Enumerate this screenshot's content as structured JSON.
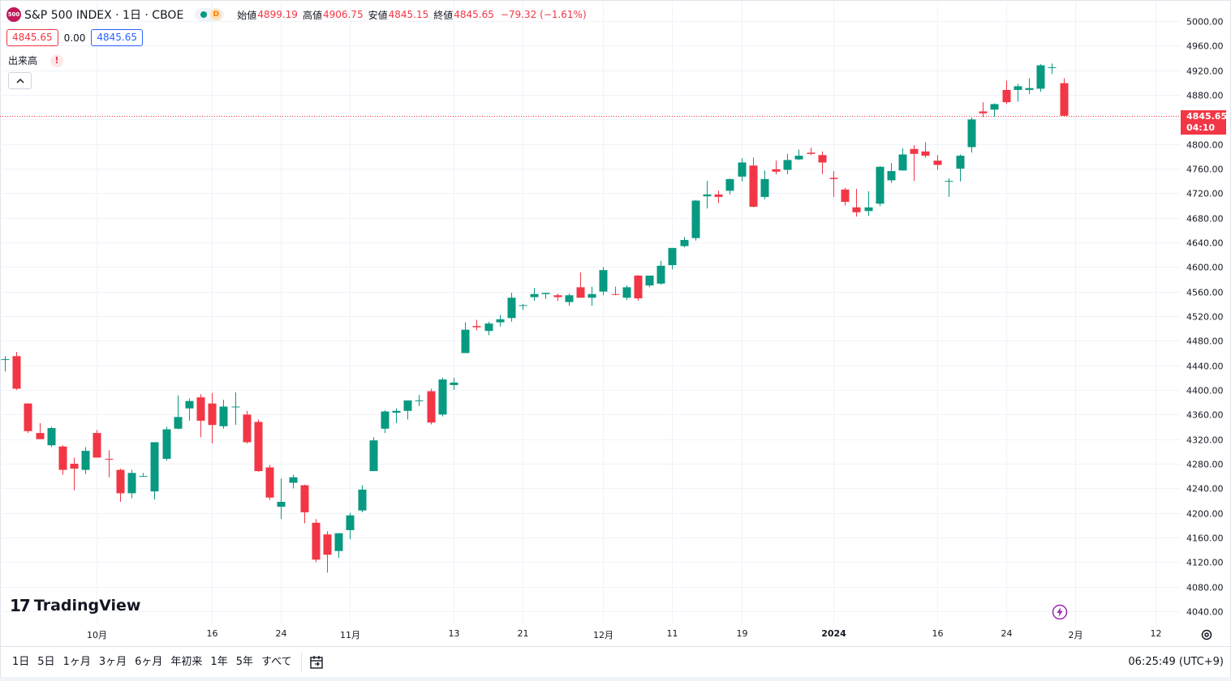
{
  "header": {
    "symbol_badge": "500",
    "title": "S&P 500 INDEX · 1日 · CBOE",
    "market_status_letter": "D",
    "ohlc": {
      "open_label": "始値",
      "open": "4899.19",
      "high_label": "高値",
      "high": "4906.75",
      "low_label": "安値",
      "low": "4845.15",
      "close_label": "終値",
      "close": "4845.65",
      "change": "−79.32 (−1.61%)"
    },
    "bid": "4845.65",
    "spread": "0.00",
    "ask": "4845.65"
  },
  "volume": {
    "label": "出来高",
    "warning_icon": "exclamation-icon"
  },
  "collapse_icon": "chevron-up-icon",
  "last_price_label": {
    "price": "4845.65",
    "countdown": "04:10"
  },
  "watermark": "TradingView",
  "colors": {
    "up": "#089981",
    "down": "#f23645",
    "grid": "#f0f3fa",
    "price_line": "#f23645"
  },
  "toolbar": {
    "ranges": [
      "1日",
      "5日",
      "1ヶ月",
      "3ヶ月",
      "6ヶ月",
      "年初来",
      "1年",
      "5年",
      "すべて"
    ],
    "goto_icon": "calendar-goto-icon",
    "clock": "06:25:49 (UTC+9)"
  },
  "chart_data": {
    "type": "candlestick",
    "yticks": [
      5000,
      4960,
      4920,
      4880,
      4840,
      4800,
      4760,
      4720,
      4680,
      4640,
      4600,
      4560,
      4520,
      4480,
      4440,
      4400,
      4360,
      4320,
      4280,
      4240,
      4200,
      4160,
      4120,
      4080,
      4040
    ],
    "ylim": [
      4020,
      5020
    ],
    "xticks": [
      {
        "label": "10月",
        "bold": false,
        "after_index": 8
      },
      {
        "label": "16",
        "bold": false,
        "after_index": 18
      },
      {
        "label": "24",
        "bold": false,
        "after_index": 24
      },
      {
        "label": "11月",
        "bold": false,
        "after_index": 30
      },
      {
        "label": "13",
        "bold": false,
        "after_index": 39
      },
      {
        "label": "21",
        "bold": false,
        "after_index": 45
      },
      {
        "label": "12月",
        "bold": false,
        "after_index": 52
      },
      {
        "label": "11",
        "bold": false,
        "after_index": 58
      },
      {
        "label": "19",
        "bold": false,
        "after_index": 64
      },
      {
        "label": "2024",
        "bold": true,
        "after_index": 72
      },
      {
        "label": "16",
        "bold": false,
        "after_index": 81
      },
      {
        "label": "24",
        "bold": false,
        "after_index": 87
      },
      {
        "label": "2月",
        "bold": false,
        "after_index": 93
      },
      {
        "label": "12",
        "bold": false,
        "after_index": 100
      }
    ],
    "candles": [
      [
        4450,
        4455,
        4430,
        4450
      ],
      [
        4455,
        4462,
        4400,
        4402
      ],
      [
        4378,
        4378,
        4330,
        4333
      ],
      [
        4330,
        4346,
        4320,
        4320
      ],
      [
        4310,
        4340,
        4307,
        4338
      ],
      [
        4308,
        4310,
        4262,
        4270
      ],
      [
        4280,
        4290,
        4237,
        4272
      ],
      [
        4270,
        4307,
        4263,
        4301
      ],
      [
        4330,
        4335,
        4290,
        4290
      ],
      [
        4288,
        4302,
        4258,
        4287
      ],
      [
        4270,
        4272,
        4218,
        4232
      ],
      [
        4232,
        4270,
        4224,
        4265
      ],
      [
        4260,
        4265,
        4260,
        4260
      ],
      [
        4235,
        4315,
        4222,
        4315
      ],
      [
        4288,
        4340,
        4285,
        4336
      ],
      [
        4337,
        4391,
        4336,
        4356
      ],
      [
        4370,
        4386,
        4350,
        4382
      ],
      [
        4388,
        4393,
        4323,
        4350
      ],
      [
        4378,
        4395,
        4313,
        4343
      ],
      [
        4341,
        4384,
        4337,
        4373
      ],
      [
        4373,
        4396,
        4343,
        4373
      ],
      [
        4360,
        4366,
        4313,
        4315
      ],
      [
        4348,
        4352,
        4267,
        4268
      ],
      [
        4274,
        4278,
        4221,
        4225
      ],
      [
        4210,
        4256,
        4190,
        4218
      ],
      [
        4249,
        4262,
        4240,
        4258
      ],
      [
        4245,
        4246,
        4183,
        4201
      ],
      [
        4184,
        4190,
        4120,
        4124
      ],
      [
        4165,
        4170,
        4103,
        4132
      ],
      [
        4138,
        4158,
        4127,
        4167
      ],
      [
        4172,
        4200,
        4157,
        4196
      ],
      [
        4204,
        4245,
        4201,
        4238
      ],
      [
        4268,
        4323,
        4268,
        4318
      ],
      [
        4337,
        4367,
        4330,
        4365
      ],
      [
        4363,
        4370,
        4346,
        4366
      ],
      [
        4366,
        4382,
        4352,
        4383
      ],
      [
        4383,
        4392,
        4374,
        4383
      ],
      [
        4398,
        4402,
        4344,
        4347
      ],
      [
        4360,
        4420,
        4357,
        4417
      ],
      [
        4408,
        4420,
        4400,
        4412
      ],
      [
        4460,
        4510,
        4460,
        4498
      ],
      [
        4504,
        4514,
        4497,
        4502
      ],
      [
        4496,
        4511,
        4489,
        4508
      ],
      [
        4510,
        4522,
        4503,
        4515
      ],
      [
        4517,
        4558,
        4511,
        4550
      ],
      [
        4538,
        4540,
        4530,
        4538
      ],
      [
        4551,
        4566,
        4545,
        4556
      ],
      [
        4556,
        4557,
        4548,
        4558
      ],
      [
        4554,
        4557,
        4545,
        4551
      ],
      [
        4543,
        4557,
        4537,
        4554
      ],
      [
        4567,
        4591,
        4552,
        4550
      ],
      [
        4550,
        4568,
        4537,
        4556
      ],
      [
        4560,
        4600,
        4554,
        4595
      ],
      [
        4556,
        4568,
        4554,
        4555
      ],
      [
        4550,
        4570,
        4546,
        4567
      ],
      [
        4586,
        4587,
        4545,
        4549
      ],
      [
        4570,
        4586,
        4567,
        4586
      ],
      [
        4573,
        4610,
        4571,
        4602
      ],
      [
        4603,
        4626,
        4596,
        4631
      ],
      [
        4634,
        4649,
        4632,
        4644
      ],
      [
        4647,
        4709,
        4643,
        4708
      ],
      [
        4715,
        4740,
        4695,
        4718
      ],
      [
        4718,
        4724,
        4704,
        4714
      ],
      [
        4724,
        4744,
        4718,
        4743
      ],
      [
        4747,
        4777,
        4739,
        4770
      ],
      [
        4765,
        4778,
        4697,
        4698
      ],
      [
        4714,
        4757,
        4710,
        4743
      ],
      [
        4759,
        4773,
        4751,
        4755
      ],
      [
        4758,
        4784,
        4751,
        4774
      ],
      [
        4775,
        4791,
        4774,
        4781
      ],
      [
        4786,
        4794,
        4782,
        4784
      ],
      [
        4782,
        4788,
        4751,
        4770
      ],
      [
        4745,
        4756,
        4714,
        4743
      ],
      [
        4726,
        4729,
        4700,
        4706
      ],
      [
        4697,
        4727,
        4682,
        4689
      ],
      [
        4691,
        4723,
        4683,
        4697
      ],
      [
        4703,
        4764,
        4699,
        4763
      ],
      [
        4741,
        4769,
        4737,
        4756
      ],
      [
        4757,
        4793,
        4757,
        4783
      ],
      [
        4792,
        4798,
        4740,
        4784
      ],
      [
        4788,
        4803,
        4778,
        4781
      ],
      [
        4773,
        4782,
        4758,
        4766
      ],
      [
        4740,
        4744,
        4714,
        4740
      ],
      [
        4760,
        4783,
        4739,
        4781
      ],
      [
        4795,
        4843,
        4786,
        4840
      ],
      [
        4853,
        4868,
        4844,
        4850
      ],
      [
        4856,
        4866,
        4844,
        4865
      ],
      [
        4888,
        4903,
        4865,
        4868
      ],
      [
        4888,
        4898,
        4869,
        4894
      ],
      [
        4888,
        4907,
        4881,
        4891
      ],
      [
        4890,
        4930,
        4885,
        4928
      ],
      [
        4925,
        4931,
        4914,
        4925
      ],
      [
        4899,
        4907,
        4845,
        4846
      ]
    ]
  }
}
